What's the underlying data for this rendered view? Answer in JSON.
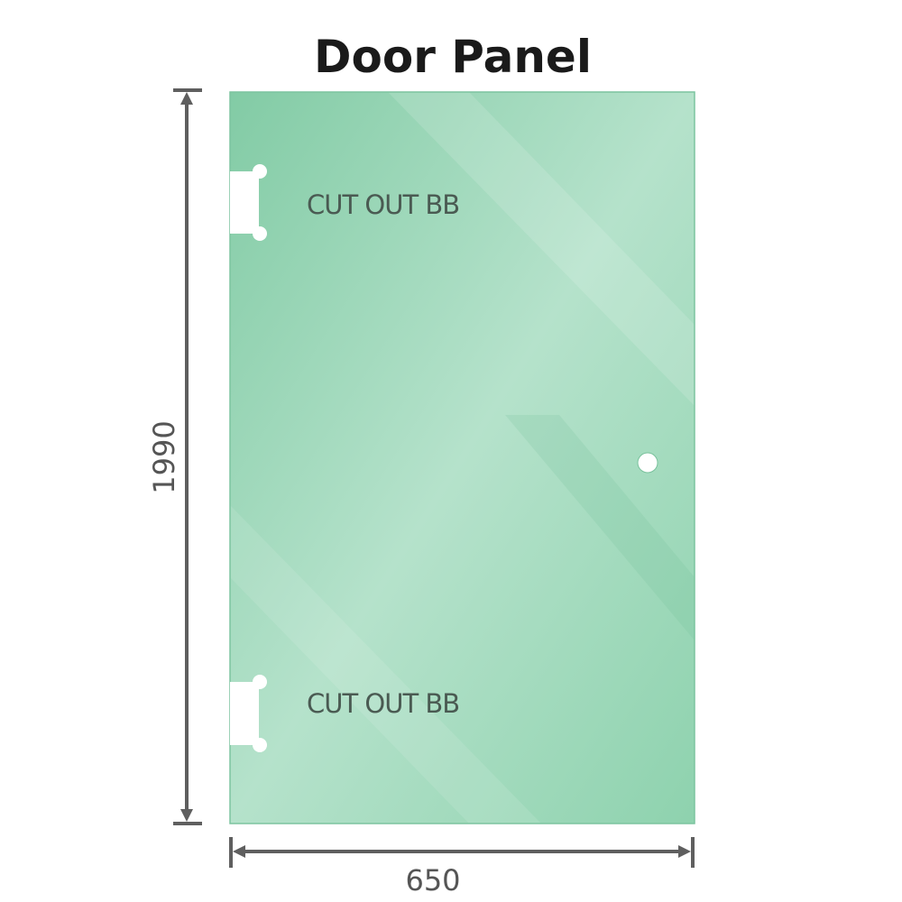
{
  "title": "Door Panel",
  "cutouts": [
    {
      "label": "CUT OUT BB"
    },
    {
      "label": "CUT OUT BB"
    }
  ],
  "dimensions": {
    "height": "1990",
    "width": "650"
  },
  "colors": {
    "glass": "#8fd3b0",
    "glass_dark": "#7ecaa3",
    "glass_light": "#b6e3cc",
    "dimension_line": "#5f5f5f"
  }
}
